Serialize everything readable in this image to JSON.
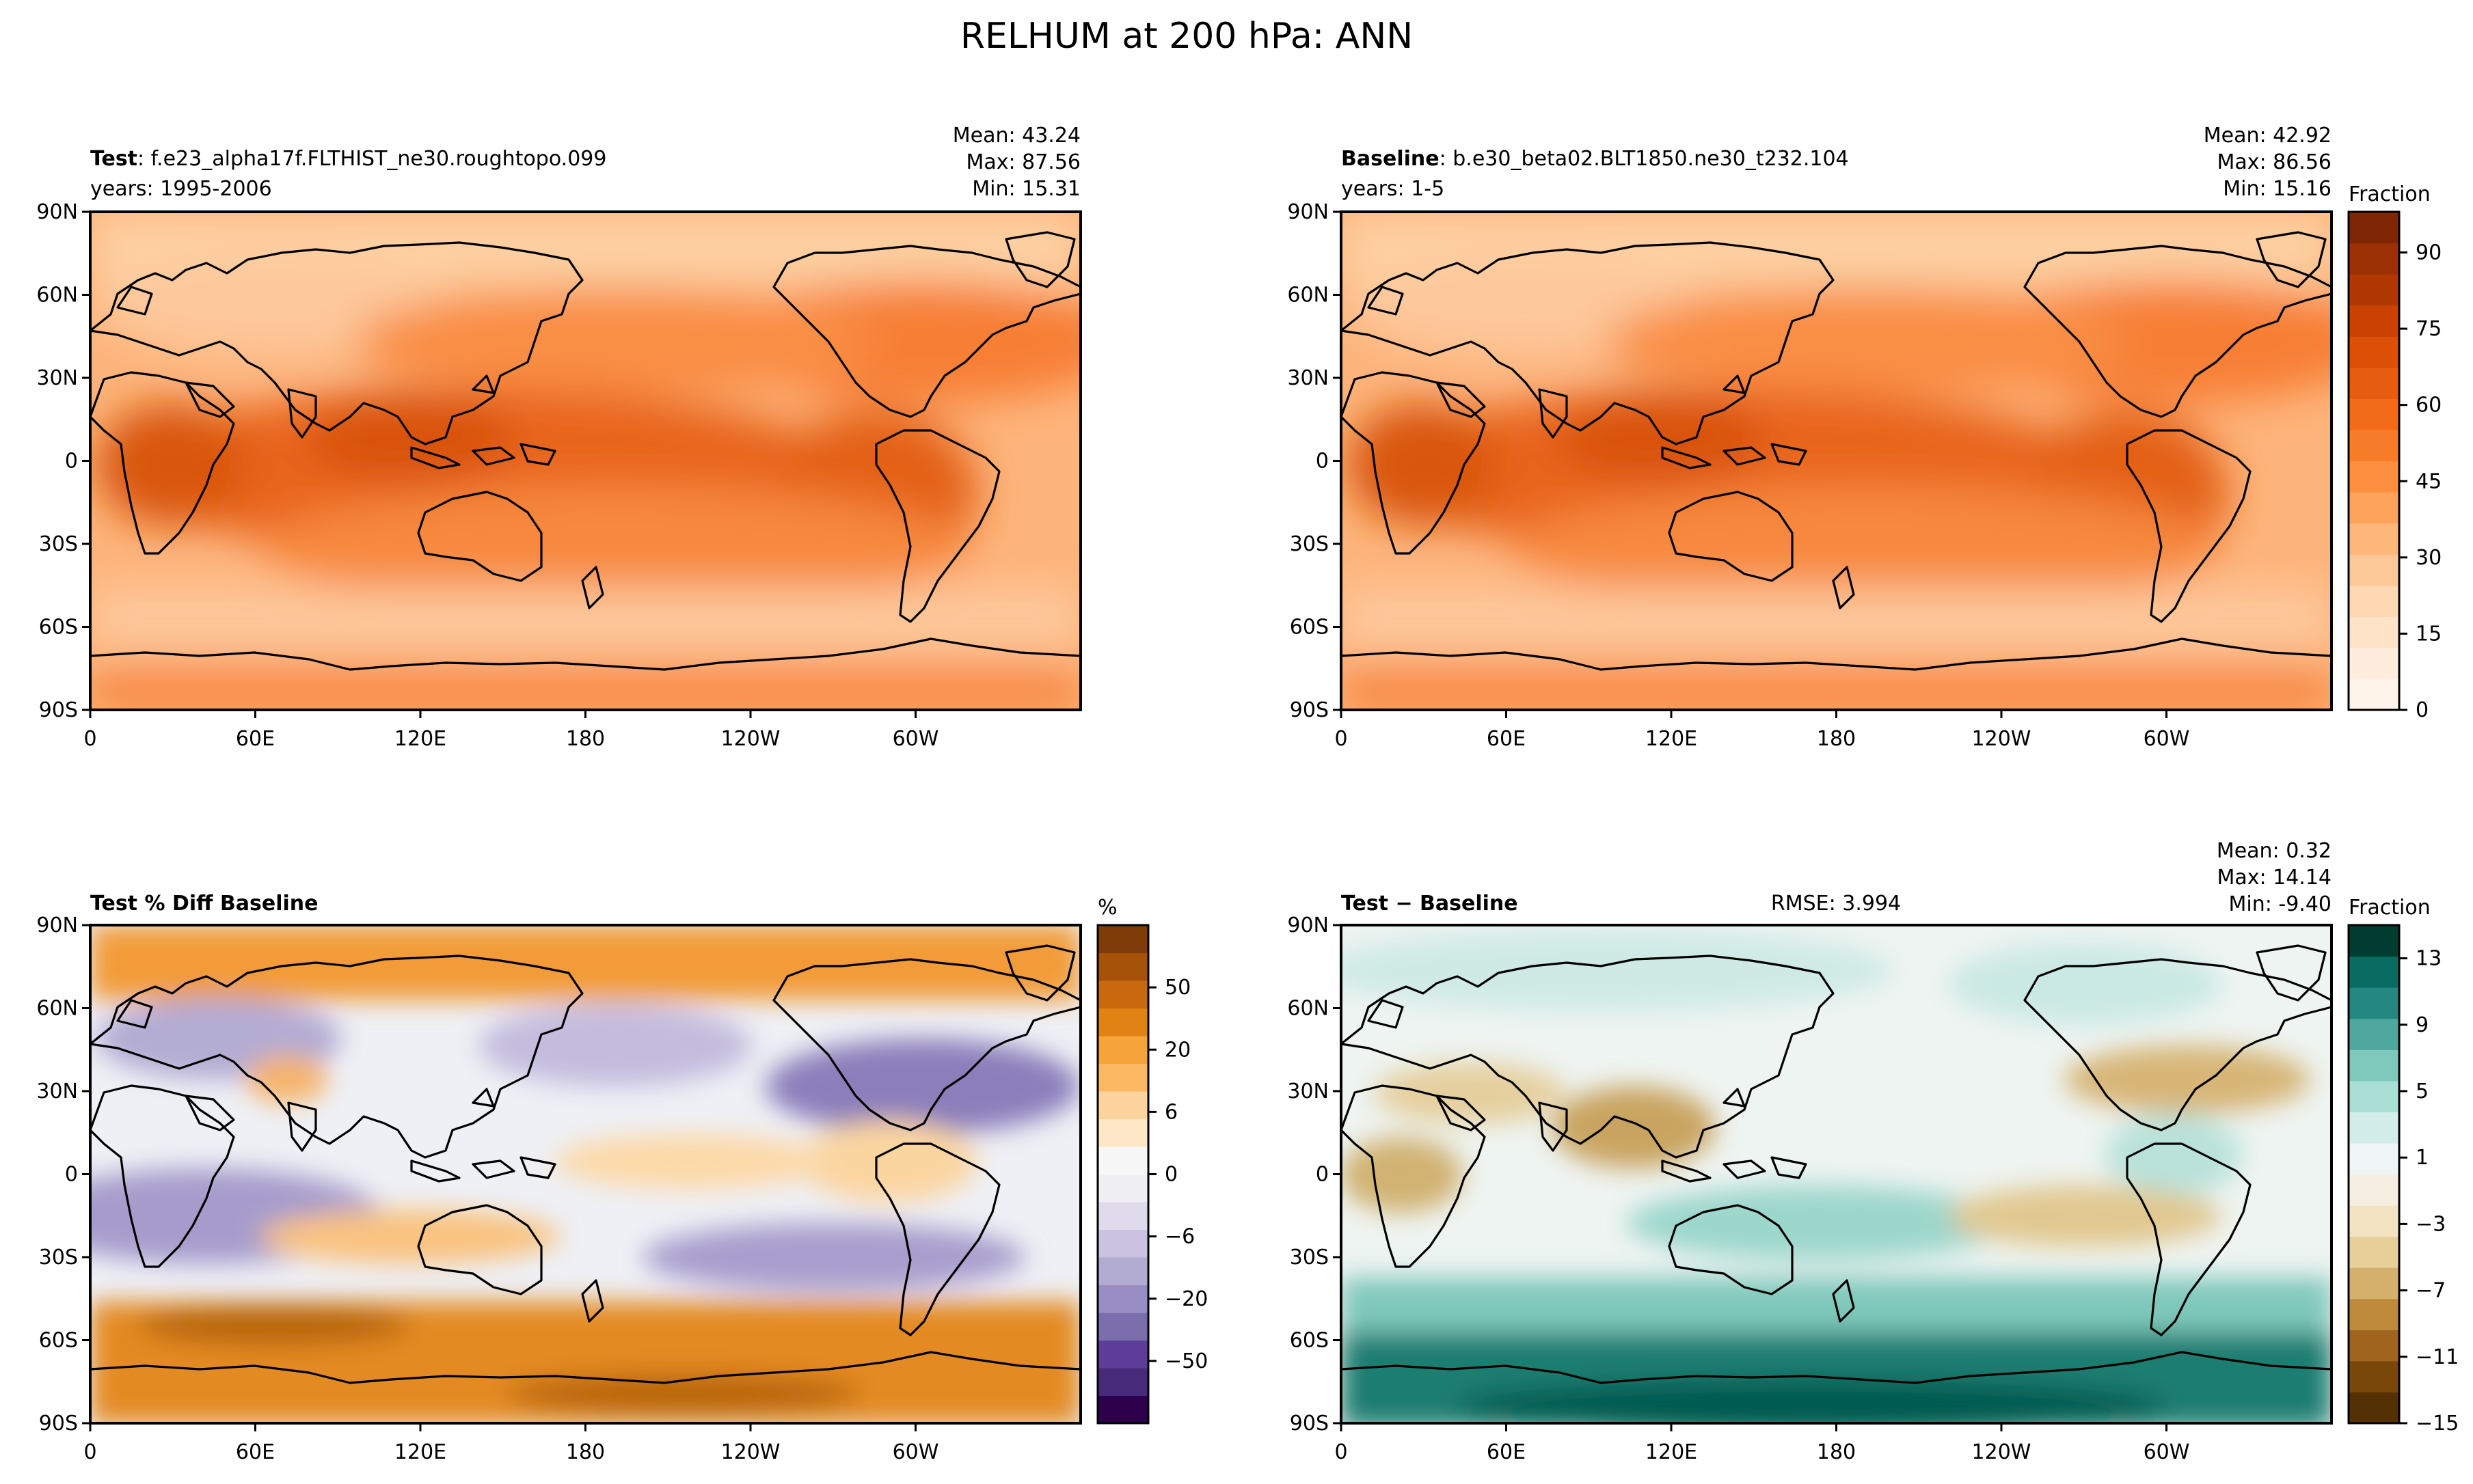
{
  "figure_title": "RELHUM at 200 hPa: ANN",
  "colors": {
    "land_outline": "#000000",
    "frame": "#000000"
  },
  "chart_data": [
    {
      "type": "heatmap",
      "panel": "test",
      "title_bold": "Test",
      "title_rest": ": f.e23_alpha17f.FLTHIST_ne30.roughtopo.099",
      "subtitle": "years: 1995-2006",
      "stats": [
        "Mean: 43.24",
        "Max: 87.56",
        "Min: 15.31"
      ],
      "stats_values": {
        "mean": 43.24,
        "max": 87.56,
        "min": 15.31
      },
      "xlabel": "",
      "ylabel": "",
      "x_ticks": [
        "0",
        "60E",
        "120E",
        "180",
        "120W",
        "60W"
      ],
      "y_ticks": [
        "90N",
        "60N",
        "30N",
        "0",
        "30S",
        "60S",
        "90S"
      ],
      "xlim": [
        0,
        360
      ],
      "ylim": [
        -90,
        90
      ],
      "colormap": "Oranges",
      "colorbar": "shared"
    },
    {
      "type": "heatmap",
      "panel": "baseline",
      "title_bold": "Baseline",
      "title_rest": ": b.e30_beta02.BLT1850.ne30_t232.104",
      "subtitle": "years: 1-5",
      "stats": [
        "Mean: 42.92",
        "Max: 86.56",
        "Min: 15.16"
      ],
      "stats_values": {
        "mean": 42.92,
        "max": 86.56,
        "min": 15.16
      },
      "xlabel": "",
      "ylabel": "",
      "x_ticks": [
        "0",
        "60E",
        "120E",
        "180",
        "120W",
        "60W"
      ],
      "y_ticks": [
        "90N",
        "60N",
        "30N",
        "0",
        "30S",
        "60S",
        "90S"
      ],
      "xlim": [
        0,
        360
      ],
      "ylim": [
        -90,
        90
      ],
      "colormap": "Oranges",
      "colorbar": {
        "label": "Fraction",
        "ticks": [
          "0",
          "15",
          "30",
          "45",
          "60",
          "75",
          "90"
        ],
        "tick_values": [
          0,
          15,
          30,
          45,
          60,
          75,
          90
        ],
        "range": [
          0,
          98
        ],
        "colors": [
          "#fff5eb",
          "#feeddc",
          "#fee3c8",
          "#fdd8b3",
          "#fdc897",
          "#fdb77a",
          "#fda35c",
          "#fc8f40",
          "#f87d2b",
          "#f16b1b",
          "#e75d0f",
          "#dc4f06",
          "#c94203",
          "#b03903",
          "#9b3104",
          "#7f2704"
        ]
      }
    },
    {
      "type": "heatmap",
      "panel": "pct_diff",
      "title_bold": "Test % Diff Baseline",
      "title_rest": "",
      "subtitle": "",
      "stats": [],
      "xlabel": "",
      "ylabel": "",
      "x_ticks": [
        "0",
        "60E",
        "120E",
        "180",
        "120W",
        "60W"
      ],
      "y_ticks": [
        "90N",
        "60N",
        "30N",
        "0",
        "30S",
        "60S",
        "90S"
      ],
      "xlim": [
        0,
        360
      ],
      "ylim": [
        -90,
        90
      ],
      "colormap": "PuOr_r",
      "colorbar": {
        "label": "%",
        "ticks": [
          "−50",
          "−20",
          "−6",
          "0",
          "6",
          "20",
          "50"
        ],
        "tick_values": [
          -50,
          -20,
          -6,
          0,
          6,
          20,
          50
        ],
        "colors": [
          "#2d004b",
          "#472a7a",
          "#5e3c99",
          "#7b6eac",
          "#998ec3",
          "#b2abd2",
          "#cac2df",
          "#dfdbec",
          "#f0eff4",
          "#f7f7f7",
          "#fee7c6",
          "#fdd49e",
          "#fdb863",
          "#f4a43a",
          "#e08214",
          "#c7690c",
          "#a65309",
          "#7f3b08"
        ]
      }
    },
    {
      "type": "heatmap",
      "panel": "diff",
      "title_bold": "Test",
      "title_rest": " − Baseline",
      "title_rest_bold": true,
      "center_text": "RMSE: 3.994",
      "rmse": 3.994,
      "subtitle": "",
      "stats": [
        "Mean:  0.32",
        "Max: 14.14",
        "Min: -9.40"
      ],
      "stats_values": {
        "mean": 0.32,
        "max": 14.14,
        "min": -9.4
      },
      "xlabel": "",
      "ylabel": "",
      "x_ticks": [
        "0",
        "60E",
        "120E",
        "180",
        "120W",
        "60W"
      ],
      "y_ticks": [
        "90N",
        "60N",
        "30N",
        "0",
        "30S",
        "60S",
        "90S"
      ],
      "xlim": [
        0,
        360
      ],
      "ylim": [
        -90,
        90
      ],
      "colormap": "BrBG",
      "colorbar": {
        "label": "Fraction",
        "ticks": [
          "−15",
          "−11",
          "−7",
          "−3",
          "1",
          "5",
          "9",
          "13"
        ],
        "tick_values": [
          -15,
          -11,
          -7,
          -3,
          1,
          5,
          9,
          13
        ],
        "range": [
          -15,
          15
        ],
        "colors": [
          "#543005",
          "#7a470b",
          "#a0641f",
          "#bf8a3c",
          "#d4b06c",
          "#e6cf98",
          "#f2e4c2",
          "#f6efe1",
          "#eef5f4",
          "#d3eeea",
          "#aadfd6",
          "#7ec8bc",
          "#4fa89d",
          "#258880",
          "#096b61",
          "#003c30"
        ]
      }
    }
  ]
}
